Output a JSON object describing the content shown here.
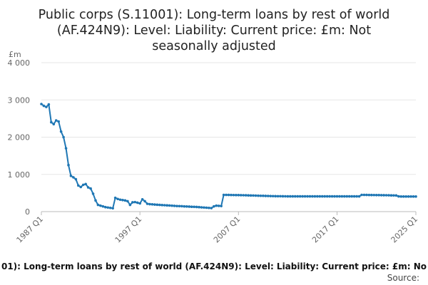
{
  "chart_data": {
    "type": "line",
    "title_lines": [
      "Public corps (S.11001): Long-term loans by rest of world",
      "(AF.424N9): Level: Liability: Current price: £m: Not",
      "seasonally adjusted"
    ],
    "y_unit": "£m",
    "ylim": [
      0,
      4000
    ],
    "y_ticks": [
      0,
      1000,
      2000,
      3000,
      4000
    ],
    "y_tick_labels": [
      "0",
      "1 000",
      "2 000",
      "3 000",
      "4 000"
    ],
    "x_tick_labels": [
      "1987 Q1",
      "1997 Q1",
      "2007 Q1",
      "2017 Q1",
      "2025 Q1"
    ],
    "x_tick_years": [
      1987,
      1997,
      2007,
      2017,
      2025
    ],
    "grid": true,
    "series": [
      {
        "color": "#1f77b4",
        "markers": true,
        "points": [
          [
            "1987 Q1",
            2890
          ],
          [
            "1987 Q2",
            2840
          ],
          [
            "1987 Q3",
            2810
          ],
          [
            "1987 Q4",
            2880
          ],
          [
            "1988 Q1",
            2400
          ],
          [
            "1988 Q2",
            2350
          ],
          [
            "1988 Q3",
            2450
          ],
          [
            "1988 Q4",
            2420
          ],
          [
            "1989 Q1",
            2150
          ],
          [
            "1989 Q2",
            2000
          ],
          [
            "1989 Q3",
            1700
          ],
          [
            "1989 Q4",
            1250
          ],
          [
            "1990 Q1",
            960
          ],
          [
            "1990 Q2",
            920
          ],
          [
            "1990 Q3",
            870
          ],
          [
            "1990 Q4",
            700
          ],
          [
            "1991 Q1",
            660
          ],
          [
            "1991 Q2",
            720
          ],
          [
            "1991 Q3",
            740
          ],
          [
            "1991 Q4",
            650
          ],
          [
            "1992 Q1",
            620
          ],
          [
            "1992 Q2",
            480
          ],
          [
            "1992 Q3",
            300
          ],
          [
            "1992 Q4",
            180
          ],
          [
            "1993 Q1",
            160
          ],
          [
            "1993 Q2",
            140
          ],
          [
            "1993 Q3",
            120
          ],
          [
            "1993 Q4",
            110
          ],
          [
            "1994 Q1",
            100
          ],
          [
            "1994 Q2",
            90
          ],
          [
            "1994 Q3",
            370
          ],
          [
            "1994 Q4",
            340
          ],
          [
            "1995 Q1",
            320
          ],
          [
            "1995 Q2",
            310
          ],
          [
            "1995 Q3",
            300
          ],
          [
            "1995 Q4",
            280
          ],
          [
            "1996 Q1",
            180
          ],
          [
            "1996 Q2",
            250
          ],
          [
            "1996 Q3",
            255
          ],
          [
            "1996 Q4",
            240
          ],
          [
            "1997 Q1",
            220
          ],
          [
            "1997 Q2",
            330
          ],
          [
            "1997 Q3",
            280
          ],
          [
            "1997 Q4",
            210
          ],
          [
            "1998 Q1",
            200
          ],
          [
            "1998 Q2",
            195
          ],
          [
            "1998 Q3",
            190
          ],
          [
            "1998 Q4",
            185
          ],
          [
            "1999 Q1",
            180
          ],
          [
            "1999 Q2",
            175
          ],
          [
            "1999 Q3",
            172
          ],
          [
            "1999 Q4",
            168
          ],
          [
            "2000 Q1",
            165
          ],
          [
            "2000 Q2",
            160
          ],
          [
            "2000 Q3",
            155
          ],
          [
            "2000 Q4",
            150
          ],
          [
            "2001 Q1",
            148
          ],
          [
            "2001 Q2",
            145
          ],
          [
            "2001 Q3",
            140
          ],
          [
            "2001 Q4",
            138
          ],
          [
            "2002 Q1",
            135
          ],
          [
            "2002 Q2",
            130
          ],
          [
            "2002 Q3",
            128
          ],
          [
            "2002 Q4",
            125
          ],
          [
            "2003 Q1",
            120
          ],
          [
            "2003 Q2",
            115
          ],
          [
            "2003 Q3",
            110
          ],
          [
            "2003 Q4",
            105
          ],
          [
            "2004 Q1",
            100
          ],
          [
            "2004 Q2",
            95
          ],
          [
            "2004 Q3",
            140
          ],
          [
            "2004 Q4",
            160
          ],
          [
            "2005 Q1",
            155
          ],
          [
            "2005 Q2",
            150
          ],
          [
            "2005 Q3",
            450
          ],
          [
            "2005 Q4",
            450
          ],
          [
            "2006 Q1",
            448
          ],
          [
            "2006 Q2",
            447
          ],
          [
            "2006 Q3",
            445
          ],
          [
            "2006 Q4",
            444
          ],
          [
            "2007 Q1",
            443
          ],
          [
            "2007 Q2",
            442
          ],
          [
            "2007 Q3",
            440
          ],
          [
            "2007 Q4",
            438
          ],
          [
            "2008 Q1",
            436
          ],
          [
            "2008 Q2",
            434
          ],
          [
            "2008 Q3",
            432
          ],
          [
            "2008 Q4",
            430
          ],
          [
            "2009 Q1",
            428
          ],
          [
            "2009 Q2",
            426
          ],
          [
            "2009 Q3",
            424
          ],
          [
            "2009 Q4",
            422
          ],
          [
            "2010 Q1",
            420
          ],
          [
            "2010 Q2",
            418
          ],
          [
            "2010 Q3",
            416
          ],
          [
            "2010 Q4",
            415
          ],
          [
            "2011 Q1",
            414
          ],
          [
            "2011 Q2",
            413
          ],
          [
            "2011 Q3",
            412
          ],
          [
            "2011 Q4",
            411
          ],
          [
            "2012 Q1",
            410
          ],
          [
            "2012 Q2",
            410
          ],
          [
            "2012 Q3",
            410
          ],
          [
            "2012 Q4",
            410
          ],
          [
            "2013 Q1",
            410
          ],
          [
            "2013 Q2",
            410
          ],
          [
            "2013 Q3",
            410
          ],
          [
            "2013 Q4",
            410
          ],
          [
            "2014 Q1",
            410
          ],
          [
            "2014 Q2",
            410
          ],
          [
            "2014 Q3",
            410
          ],
          [
            "2014 Q4",
            410
          ],
          [
            "2015 Q1",
            410
          ],
          [
            "2015 Q2",
            410
          ],
          [
            "2015 Q3",
            410
          ],
          [
            "2015 Q4",
            410
          ],
          [
            "2016 Q1",
            410
          ],
          [
            "2016 Q2",
            410
          ],
          [
            "2016 Q3",
            410
          ],
          [
            "2016 Q4",
            410
          ],
          [
            "2017 Q1",
            410
          ],
          [
            "2017 Q2",
            410
          ],
          [
            "2017 Q3",
            410
          ],
          [
            "2017 Q4",
            410
          ],
          [
            "2018 Q1",
            410
          ],
          [
            "2018 Q2",
            410
          ],
          [
            "2018 Q3",
            410
          ],
          [
            "2018 Q4",
            410
          ],
          [
            "2019 Q1",
            410
          ],
          [
            "2019 Q2",
            410
          ],
          [
            "2019 Q3",
            450
          ],
          [
            "2019 Q4",
            450
          ],
          [
            "2020 Q1",
            448
          ],
          [
            "2020 Q2",
            447
          ],
          [
            "2020 Q3",
            446
          ],
          [
            "2020 Q4",
            445
          ],
          [
            "2021 Q1",
            444
          ],
          [
            "2021 Q2",
            443
          ],
          [
            "2021 Q3",
            442
          ],
          [
            "2021 Q4",
            441
          ],
          [
            "2022 Q1",
            440
          ],
          [
            "2022 Q2",
            438
          ],
          [
            "2022 Q3",
            436
          ],
          [
            "2022 Q4",
            435
          ],
          [
            "2023 Q1",
            434
          ],
          [
            "2023 Q2",
            410
          ],
          [
            "2023 Q3",
            405
          ],
          [
            "2023 Q4",
            405
          ],
          [
            "2024 Q1",
            405
          ],
          [
            "2024 Q2",
            405
          ],
          [
            "2024 Q3",
            405
          ],
          [
            "2024 Q4",
            405
          ],
          [
            "2025 Q1",
            405
          ]
        ]
      }
    ]
  },
  "footer": {
    "caption": "01): Long-term loans by rest of world (AF.424N9): Level: Liability: Current price: £m: No",
    "source": "Source:"
  }
}
